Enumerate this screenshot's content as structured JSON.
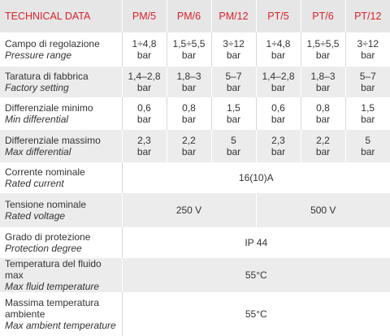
{
  "header": {
    "title": "TECHNICAL DATA",
    "models": [
      "PM/5",
      "PM/6",
      "PM/12",
      "PT/5",
      "PT/6",
      "PT/12"
    ]
  },
  "rows": [
    {
      "label": "Campo di regolazione",
      "label_en": "Pressure range",
      "cells": [
        [
          "1÷4,8",
          "bar"
        ],
        [
          "1,5÷5,5",
          "bar"
        ],
        [
          "3÷12",
          "bar"
        ],
        [
          "1÷4,8",
          "bar"
        ],
        [
          "1,5÷5,5",
          "bar"
        ],
        [
          "3÷12",
          "bar"
        ]
      ]
    },
    {
      "label": "Taratura di fabbrica",
      "label_en": "Factory setting",
      "cells": [
        [
          "1,4–2,8",
          "bar"
        ],
        [
          "1,8–3",
          "bar"
        ],
        [
          "5–7",
          "bar"
        ],
        [
          "1,4–2,8",
          "bar"
        ],
        [
          "1,8–3",
          "bar"
        ],
        [
          "5–7",
          "bar"
        ]
      ]
    },
    {
      "label": "Differenziale minimo",
      "label_en": "Min differential",
      "cells": [
        [
          "0,6",
          "bar"
        ],
        [
          "0,8",
          "bar"
        ],
        [
          "1,5",
          "bar"
        ],
        [
          "0,6",
          "bar"
        ],
        [
          "0,8",
          "bar"
        ],
        [
          "1,5",
          "bar"
        ]
      ]
    },
    {
      "label": "Differenziale massimo",
      "label_en": "Max differential",
      "cells": [
        [
          "2,3",
          "bar"
        ],
        [
          "2,2",
          "bar"
        ],
        [
          "5",
          "bar"
        ],
        [
          "2,3",
          "bar"
        ],
        [
          "2,2",
          "bar"
        ],
        [
          "5",
          "bar"
        ]
      ]
    },
    {
      "label": "Corrente nominale",
      "label_en": "Rated current",
      "cells": [
        [
          "16(10)A"
        ]
      ]
    },
    {
      "label": "Tensione nominale",
      "label_en": "Rated voltage",
      "cells": [
        [
          "250 V"
        ],
        [
          "500 V"
        ]
      ]
    },
    {
      "label": "Grado di protezione",
      "label_en": "Protection degree",
      "cells": [
        [
          "IP 44"
        ]
      ]
    },
    {
      "label": "Temperatura del fluido max",
      "label_en": "Max fluid temperature",
      "cells": [
        [
          "55°C"
        ]
      ]
    },
    {
      "label": "Massima temperatura ambiente",
      "label_en": "Max ambient temperature",
      "cells": [
        [
          "55°C"
        ]
      ]
    }
  ]
}
